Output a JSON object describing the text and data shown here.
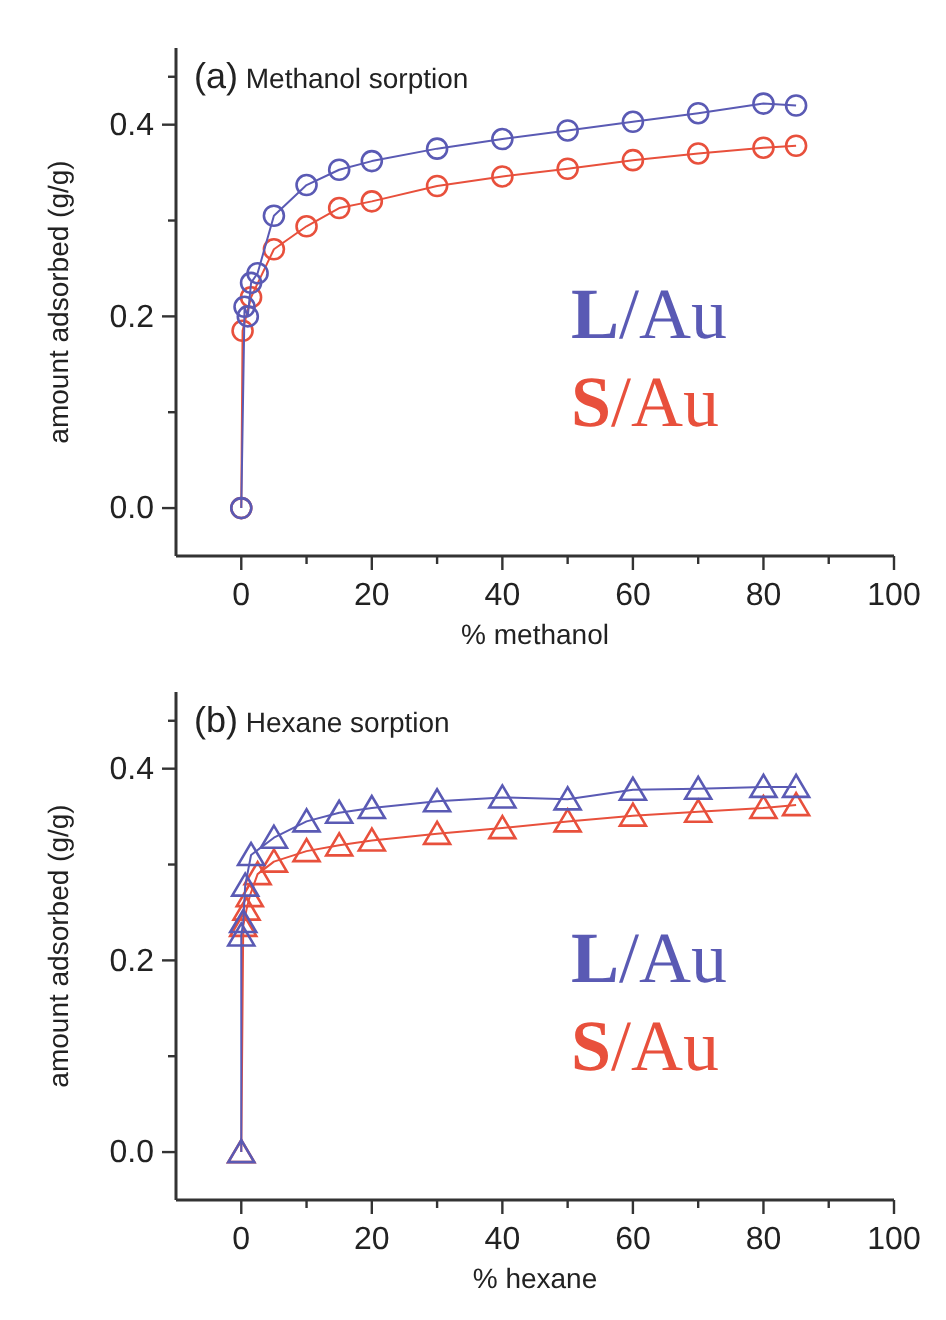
{
  "chart_data": [
    {
      "type": "line",
      "title": "(a) Methanol sorption",
      "xlabel": "% methanol",
      "ylabel": "amount adsorbed (g/g)",
      "marker": "circle",
      "legend": "right",
      "xlim": [
        -10,
        100
      ],
      "xticks": [
        0,
        {
          "value": 10,
          "label": null
        },
        20,
        {
          "value": 30,
          "label": null
        },
        40,
        {
          "value": 50,
          "label": null
        },
        60,
        {
          "value": 70,
          "label": null
        },
        80,
        {
          "value": 90,
          "label": null
        },
        100
      ],
      "ylim": [
        -0.05,
        0.48
      ],
      "yticks": [
        {
          "value": 0,
          "label": "0.0"
        },
        {
          "value": 0.1,
          "label": null
        },
        {
          "value": 0.2,
          "label": "0.2"
        },
        {
          "value": 0.3,
          "label": null
        },
        {
          "value": 0.4,
          "label": "0.4"
        },
        {
          "value": 0.45,
          "label": null
        }
      ],
      "series": [
        {
          "name": "L/Au",
          "color": "#5a5ab4",
          "x": [
            0,
            0.5,
            1,
            1.5,
            2.5,
            5,
            10,
            15,
            20,
            30,
            40,
            50,
            60,
            70,
            80,
            85
          ],
          "values": [
            0,
            0.21,
            0.2,
            0.235,
            0.245,
            0.305,
            0.337,
            0.353,
            0.362,
            0.375,
            0.385,
            0.394,
            0.403,
            0.412,
            0.422,
            0.42
          ]
        },
        {
          "name": "S/Au",
          "color": "#e8503c",
          "x": [
            0,
            0.2,
            1.5,
            5,
            10,
            15,
            20,
            30,
            40,
            50,
            60,
            70,
            80,
            85
          ],
          "values": [
            0,
            0.185,
            0.22,
            0.27,
            0.294,
            0.313,
            0.32,
            0.336,
            0.346,
            0.354,
            0.363,
            0.37,
            0.376,
            0.378
          ]
        }
      ]
    },
    {
      "type": "line",
      "title": "(b) Hexane sorption",
      "xlabel": "% hexane",
      "ylabel": "amount adsorbed (g/g)",
      "marker": "triangle",
      "legend": "right",
      "xlim": [
        -10,
        100
      ],
      "xticks": [
        0,
        {
          "value": 10,
          "label": null
        },
        20,
        {
          "value": 30,
          "label": null
        },
        40,
        {
          "value": 50,
          "label": null
        },
        60,
        {
          "value": 70,
          "label": null
        },
        80,
        {
          "value": 90,
          "label": null
        },
        100
      ],
      "ylim": [
        -0.05,
        0.48
      ],
      "yticks": [
        {
          "value": 0,
          "label": "0.0"
        },
        {
          "value": 0.1,
          "label": null
        },
        {
          "value": 0.2,
          "label": "0.2"
        },
        {
          "value": 0.3,
          "label": null
        },
        {
          "value": 0.4,
          "label": "0.4"
        },
        {
          "value": 0.45,
          "label": null
        }
      ],
      "series": [
        {
          "name": "L/Au",
          "color": "#5a5ab4",
          "x": [
            0,
            0,
            0.3,
            0.6,
            1.5,
            5,
            10,
            15,
            20,
            30,
            40,
            50,
            60,
            70,
            80,
            85
          ],
          "values": [
            0,
            0.226,
            0.24,
            0.278,
            0.31,
            0.328,
            0.345,
            0.354,
            0.359,
            0.366,
            0.37,
            0.368,
            0.378,
            0.379,
            0.381,
            0.381
          ]
        },
        {
          "name": "S/Au",
          "color": "#e8503c",
          "x": [
            0,
            0.3,
            0.8,
            1.3,
            2.5,
            5,
            10,
            15,
            20,
            30,
            40,
            50,
            60,
            70,
            80,
            85
          ],
          "values": [
            0,
            0.236,
            0.253,
            0.267,
            0.29,
            0.303,
            0.314,
            0.32,
            0.325,
            0.332,
            0.338,
            0.345,
            0.351,
            0.355,
            0.359,
            0.362
          ]
        }
      ]
    }
  ]
}
